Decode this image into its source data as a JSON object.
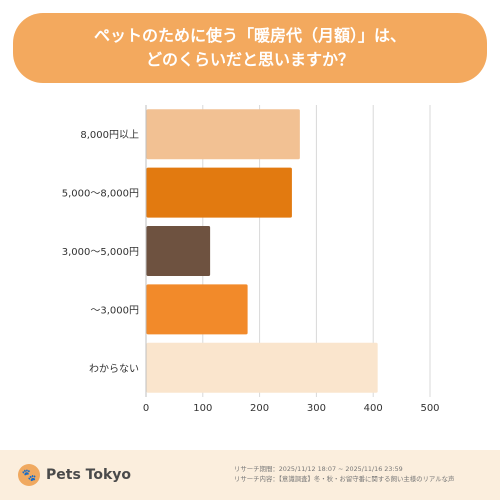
{
  "title": {
    "line1": "ペットのために使う「暖房代（月額）」は、",
    "line2": "どのくらいだと思いますか？"
  },
  "chart_data": {
    "type": "bar",
    "orientation": "horizontal",
    "categories": [
      "8,000円以上",
      "5,000〜8,000円",
      "3,000〜5,000円",
      "〜3,000円",
      "わからない"
    ],
    "values": [
      270,
      256,
      112,
      178,
      407
    ],
    "colors": [
      "#f2c193",
      "#e27a10",
      "#6e5240",
      "#f28a2a",
      "#fae5cd"
    ],
    "xticks": [
      0,
      100,
      200,
      300,
      400,
      500
    ],
    "xlim": [
      0,
      500
    ],
    "grid": true
  },
  "footer": {
    "brand": "Pets Tokyo",
    "survey_period": "リサーチ期間：2025/11/12 18:07 ~ 2025/11/16 23:59",
    "survey_content": "リサーチ内容：【意識調査】冬・秋・お留守番に関する飼い主様のリアルな声"
  },
  "colors": {
    "banner": "#f3a95e",
    "footer_bg": "#fbeedd",
    "grid": "#d9d9d9"
  }
}
